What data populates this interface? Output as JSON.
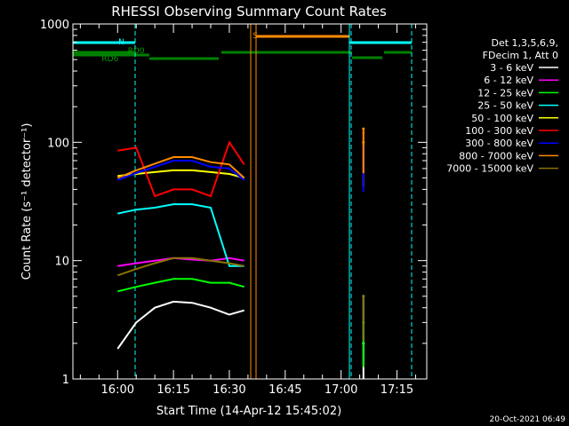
{
  "chart_data": {
    "type": "line",
    "title": "RHESSI Observing Summary Count Rates",
    "xlabel": "Start Time (14-Apr-12 15:45:02)",
    "ylabel": "Count Rate (s⁻¹ detector⁻¹)",
    "xlim": [
      "15:48",
      "17:23"
    ],
    "ylim": [
      1,
      1000
    ],
    "yscale": "log",
    "x_ticks": [
      "16:00",
      "16:15",
      "16:30",
      "16:45",
      "17:00",
      "17:15"
    ],
    "y_ticks": [
      "1",
      "10",
      "100",
      "1000"
    ],
    "grid": false,
    "legend_header": [
      "Det 1,3,5,6,9,",
      "FDecim 1, Att 0"
    ],
    "legend_position": "right",
    "series": [
      {
        "name": "3 - 6 keV",
        "color": "#ffffff",
        "x": [
          "16:00",
          "16:05",
          "16:10",
          "16:15",
          "16:20",
          "16:25",
          "16:30",
          "16:34",
          "17:06"
        ],
        "values": [
          1.8,
          3.0,
          4.0,
          4.5,
          4.4,
          4.0,
          3.5,
          3.8,
          2.0
        ]
      },
      {
        "name": "6 - 12 keV",
        "color": "#ff00ff",
        "x": [
          "16:00",
          "16:05",
          "16:10",
          "16:15",
          "16:20",
          "16:25",
          "16:30",
          "16:34",
          "17:06"
        ],
        "values": [
          9.0,
          9.5,
          10.0,
          10.5,
          10.2,
          10.0,
          10.5,
          10.0,
          5.0
        ]
      },
      {
        "name": "12 - 25 keV",
        "color": "#00ff00",
        "x": [
          "16:00",
          "16:05",
          "16:10",
          "16:15",
          "16:20",
          "16:25",
          "16:30",
          "16:34",
          "17:06"
        ],
        "values": [
          5.5,
          6.0,
          6.5,
          7.0,
          7.0,
          6.5,
          6.5,
          6.0,
          3.0
        ]
      },
      {
        "name": "25 - 50 keV",
        "color": "#00ffff",
        "x": [
          "16:00",
          "16:05",
          "16:10",
          "16:15",
          "16:20",
          "16:25",
          "16:30",
          "16:34",
          "17:06"
        ],
        "values": [
          25,
          27,
          28,
          30,
          30,
          28,
          9,
          9,
          5
        ]
      },
      {
        "name": "50 - 100 keV",
        "color": "#ffff00",
        "x": [
          "16:00",
          "16:05",
          "16:10",
          "16:15",
          "16:20",
          "16:25",
          "16:30",
          "16:34",
          "17:06"
        ],
        "values": [
          52,
          54,
          56,
          58,
          58,
          56,
          54,
          50,
          100
        ]
      },
      {
        "name": "100 - 300 keV",
        "color": "#ff0000",
        "x": [
          "16:00",
          "16:05",
          "16:10",
          "16:15",
          "16:20",
          "16:25",
          "16:30",
          "16:34",
          "17:06"
        ],
        "values": [
          85,
          90,
          35,
          40,
          40,
          35,
          100,
          65,
          120
        ]
      },
      {
        "name": "300 - 800 keV",
        "color": "#0000ff",
        "x": [
          "16:00",
          "16:05",
          "16:10",
          "16:15",
          "16:20",
          "16:25",
          "16:30",
          "16:34",
          "17:06"
        ],
        "values": [
          48,
          55,
          62,
          70,
          70,
          62,
          60,
          48,
          90
        ]
      },
      {
        "name": "800 - 7000 keV",
        "color": "#ff8c00",
        "x": [
          "16:00",
          "16:05",
          "16:10",
          "16:15",
          "16:20",
          "16:25",
          "16:30",
          "16:34",
          "17:06"
        ],
        "values": [
          50,
          58,
          66,
          75,
          75,
          68,
          65,
          50,
          130
        ]
      },
      {
        "name": "7000 - 15000 keV",
        "color": "#8b7300",
        "x": [
          "16:00",
          "16:05",
          "16:10",
          "16:15",
          "16:20",
          "16:25",
          "16:30",
          "16:34",
          "17:06"
        ],
        "values": [
          7.5,
          8.5,
          9.5,
          10.5,
          10.5,
          10.0,
          9.5,
          9.0,
          5.0
        ]
      }
    ],
    "annotations": [
      {
        "text": "N",
        "color": "#00ffff",
        "x": "16:01"
      },
      {
        "text": "RD0",
        "color": "#00a000",
        "x": "16:05"
      },
      {
        "text": "RD6",
        "color": "#00a000",
        "x": "15:58"
      },
      {
        "text": "S",
        "color": "#ff8c00",
        "x": "16:37"
      }
    ],
    "timestamp": "20-Oct-2021 06:49"
  }
}
